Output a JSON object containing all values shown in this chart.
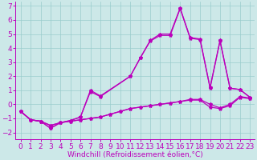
{
  "bg_color": "#cce8e8",
  "line_color": "#bb00bb",
  "grid_color": "#99cccc",
  "ylim": [
    -2.5,
    7.3
  ],
  "xlim": [
    -0.5,
    23.5
  ],
  "yticks": [
    -2,
    -1,
    0,
    1,
    2,
    3,
    4,
    5,
    6,
    7
  ],
  "xticks": [
    0,
    1,
    2,
    3,
    4,
    5,
    6,
    7,
    8,
    9,
    10,
    11,
    12,
    13,
    14,
    15,
    16,
    17,
    18,
    19,
    20,
    21,
    22,
    23
  ],
  "xlabel": "Windchill (Refroidissement éolien,°C)",
  "font_size": 6.5,
  "marker_size": 3.0,
  "line_width": 0.9,
  "line1_x": [
    0,
    1,
    2,
    3,
    4,
    5,
    6,
    7,
    8,
    9,
    10,
    11,
    12,
    13,
    14,
    15,
    16,
    17,
    18,
    19,
    20,
    21,
    22,
    23
  ],
  "line1_y": [
    -0.5,
    -1.1,
    -1.2,
    -1.5,
    -1.3,
    -1.2,
    -1.1,
    -1.0,
    -0.9,
    -0.7,
    -0.5,
    -0.3,
    -0.2,
    -0.1,
    0.0,
    0.1,
    0.2,
    0.3,
    0.3,
    -0.2,
    -0.3,
    -0.1,
    0.5,
    0.4
  ],
  "line2_x": [
    0,
    1,
    2,
    3,
    4,
    5,
    6,
    7,
    8,
    9,
    10,
    11,
    12,
    13,
    14,
    15,
    16,
    17,
    18,
    19,
    20,
    21,
    22,
    23
  ],
  "line2_y": [
    -0.5,
    -1.1,
    -1.2,
    -1.5,
    -1.3,
    -1.2,
    -1.1,
    -1.0,
    -0.9,
    -0.7,
    -0.5,
    -0.3,
    -0.2,
    -0.1,
    0.0,
    0.1,
    0.2,
    0.35,
    0.35,
    0.0,
    -0.25,
    0.0,
    0.55,
    0.45
  ],
  "line3_x": [
    0,
    1,
    2,
    3,
    4,
    5,
    6,
    7,
    8,
    11,
    12,
    13,
    14,
    15,
    16,
    17,
    18,
    19,
    20,
    21,
    22,
    23
  ],
  "line3_y": [
    -0.5,
    -1.1,
    -1.2,
    -1.7,
    -1.3,
    -1.15,
    -0.9,
    0.9,
    0.55,
    2.0,
    3.3,
    4.5,
    4.9,
    4.9,
    6.8,
    4.7,
    4.6,
    1.15,
    4.5,
    1.15,
    1.05,
    0.5
  ],
  "line4_x": [
    0,
    1,
    2,
    3,
    4,
    5,
    6,
    7,
    8,
    11,
    12,
    13,
    14,
    15,
    16,
    17,
    18,
    19,
    20,
    21,
    22,
    23
  ],
  "line4_y": [
    -0.5,
    -1.1,
    -1.2,
    -1.7,
    -1.3,
    -1.15,
    -0.9,
    1.0,
    0.6,
    2.0,
    3.3,
    4.55,
    5.0,
    5.0,
    6.85,
    4.75,
    4.65,
    1.2,
    4.55,
    1.15,
    1.05,
    0.5
  ]
}
